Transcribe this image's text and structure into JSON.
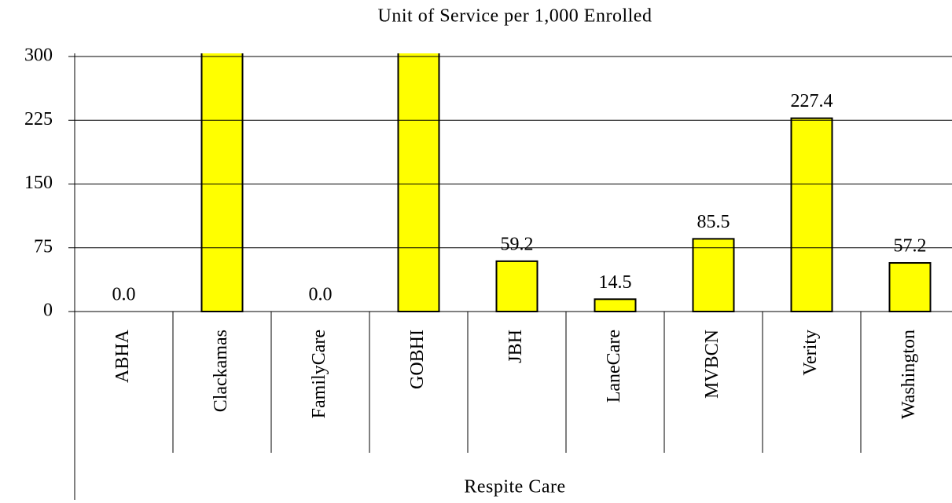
{
  "chart_data": {
    "type": "bar",
    "title": "Unit of Service per 1,000 Enrolled",
    "xlabel": "Respite Care",
    "categories": [
      "ABHA",
      "Clackamas",
      "FamilyCare",
      "GOBHI",
      "JBH",
      "LaneCare",
      "MVBCN",
      "Verity",
      "Washington"
    ],
    "values": [
      0,
      310,
      0,
      310,
      59.2,
      14.5,
      85.5,
      227.4,
      57.2
    ],
    "value_labels": [
      "0.0",
      null,
      "0.0",
      null,
      "59.2",
      "14.5",
      "85.5",
      "227.4",
      "57.2"
    ],
    "color": "#ffff00",
    "ylim": [
      0,
      300
    ],
    "yticks": [
      0,
      75,
      150,
      225,
      300
    ],
    "grid": true
  }
}
